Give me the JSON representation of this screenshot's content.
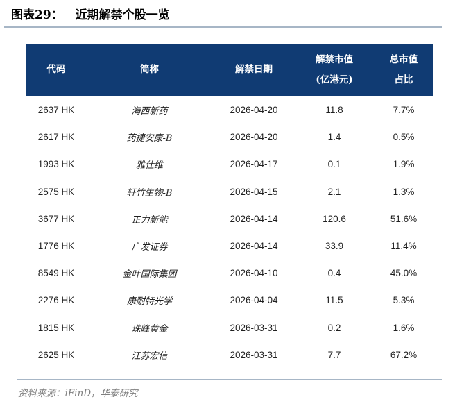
{
  "title": {
    "label": "图表29：",
    "text": "近期解禁个股一览"
  },
  "colors": {
    "header_bg": "#103B73",
    "rule": "#A7B6C6",
    "source_text": "#7F7F7F",
    "title_text": "#000000",
    "body_text": "#1F1F1F"
  },
  "table": {
    "columns": [
      {
        "title": "代码",
        "subtitle": ""
      },
      {
        "title": "简称",
        "subtitle": ""
      },
      {
        "title": "解禁日期",
        "subtitle": ""
      },
      {
        "title": "解禁市值",
        "subtitle": "(亿港元)"
      },
      {
        "title": "总市值",
        "subtitle": "占比"
      }
    ],
    "rows": [
      {
        "code": "2637 HK",
        "name": "海西新药",
        "date": "2026-04-20",
        "value": "11.8",
        "pct": "7.7%"
      },
      {
        "code": "2617 HK",
        "name": "药捷安康-B",
        "date": "2026-04-20",
        "value": "1.4",
        "pct": "0.5%"
      },
      {
        "code": "1993 HK",
        "name": "雅仕维",
        "date": "2026-04-17",
        "value": "0.1",
        "pct": "1.9%"
      },
      {
        "code": "2575 HK",
        "name": "轩竹生物-B",
        "date": "2026-04-15",
        "value": "2.1",
        "pct": "1.3%"
      },
      {
        "code": "3677 HK",
        "name": "正力新能",
        "date": "2026-04-14",
        "value": "120.6",
        "pct": "51.6%"
      },
      {
        "code": "1776 HK",
        "name": "广发证券",
        "date": "2026-04-14",
        "value": "33.9",
        "pct": "11.4%"
      },
      {
        "code": "8549 HK",
        "name": "金叶国际集团",
        "date": "2026-04-10",
        "value": "0.4",
        "pct": "45.0%"
      },
      {
        "code": "2276 HK",
        "name": "康耐特光学",
        "date": "2026-04-04",
        "value": "11.5",
        "pct": "5.3%"
      },
      {
        "code": "1815 HK",
        "name": "珠峰黄金",
        "date": "2026-03-31",
        "value": "0.2",
        "pct": "1.6%"
      },
      {
        "code": "2625 HK",
        "name": "江苏宏信",
        "date": "2026-03-31",
        "value": "7.7",
        "pct": "67.2%"
      }
    ]
  },
  "footer": {
    "source": "资料来源：iFinD，华泰研究"
  }
}
